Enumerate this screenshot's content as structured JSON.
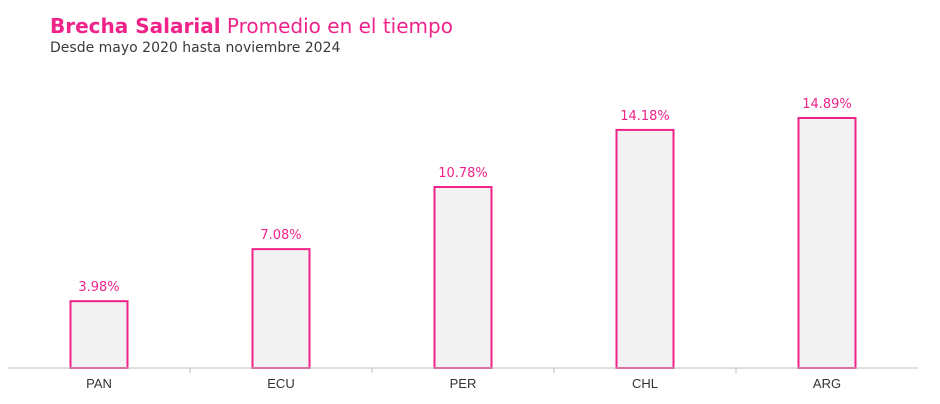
{
  "header": {
    "title_bold": "Brecha Salarial",
    "title_rest": " Promedio en el tiempo",
    "subtitle": "Desde mayo 2020 hasta noviembre 2024"
  },
  "colors": {
    "accent": "#f0238a",
    "bar_fill": "#f2f2f2",
    "axis": "#bfbfbf"
  },
  "chart_data": {
    "type": "bar",
    "title": "Brecha Salarial Promedio en el tiempo",
    "subtitle": "Desde mayo 2020 hasta noviembre 2024",
    "categories": [
      "PAN",
      "ECU",
      "PER",
      "CHL",
      "ARG"
    ],
    "values": [
      3.98,
      7.08,
      10.78,
      14.18,
      14.89
    ],
    "data_labels": [
      "3.98%",
      "7.08%",
      "10.78%",
      "14.18%",
      "14.89%"
    ],
    "ylim": [
      0,
      15
    ],
    "grid": false,
    "legend": "none"
  }
}
